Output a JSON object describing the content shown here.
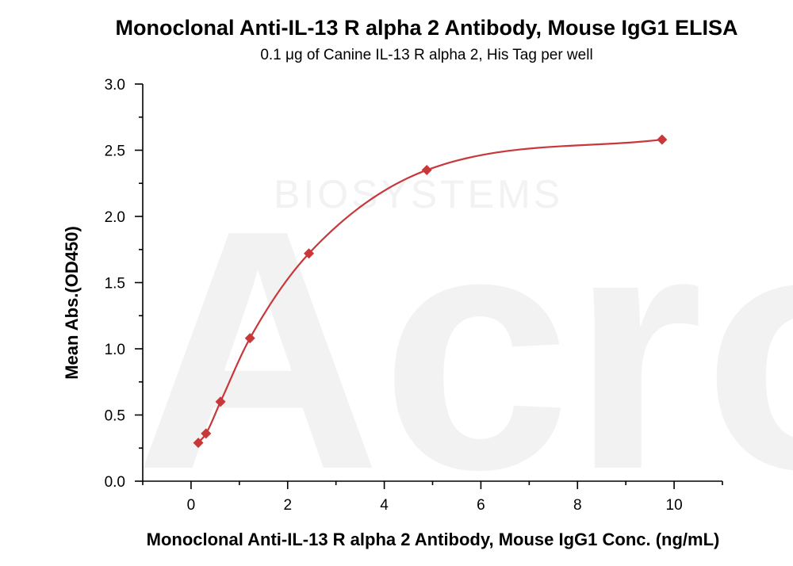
{
  "colors": {
    "series": "#c8373a",
    "axis": "#000000",
    "watermark": "#f2f2f2"
  },
  "watermark": {
    "logo": "Acro",
    "text": "BIOSYSTEMS"
  },
  "chart_data": {
    "type": "scatter",
    "title": "Monoclonal Anti-IL-13 R alpha 2 Antibody, Mouse IgG1 ELISA",
    "subtitle": "0.1 μg of Canine IL-13 R alpha 2, His Tag per well",
    "xlabel": "Monoclonal Anti-IL-13 R alpha 2 Antibody, Mouse IgG1 Conc. (ng/mL)",
    "ylabel": "Mean Abs.(OD450)",
    "xlim": [
      -1,
      11
    ],
    "ylim": [
      0,
      3
    ],
    "x_major_ticks": [
      0,
      2,
      4,
      6,
      8,
      10
    ],
    "x_tick_labels": [
      "0",
      "2",
      "4",
      "6",
      "8",
      "10"
    ],
    "x_minor_ticks": [
      -1,
      1,
      3,
      5,
      7,
      9,
      11
    ],
    "y_major_ticks": [
      0,
      0.5,
      1.0,
      1.5,
      2.0,
      2.5,
      3.0
    ],
    "y_tick_labels": [
      "0.0",
      "0.5",
      "1.0",
      "1.5",
      "2.0",
      "2.5",
      "3.0"
    ],
    "y_minor_ticks": [
      0.25,
      0.75,
      1.25,
      1.75,
      2.25,
      2.75
    ],
    "grid": false,
    "marker": "diamond",
    "fit": "4PL",
    "series": [
      {
        "x": [
          0.15,
          0.31,
          0.61,
          1.22,
          2.44,
          4.88,
          9.75
        ],
        "y": [
          0.29,
          0.36,
          0.6,
          1.08,
          1.72,
          2.35,
          2.58
        ]
      }
    ]
  }
}
